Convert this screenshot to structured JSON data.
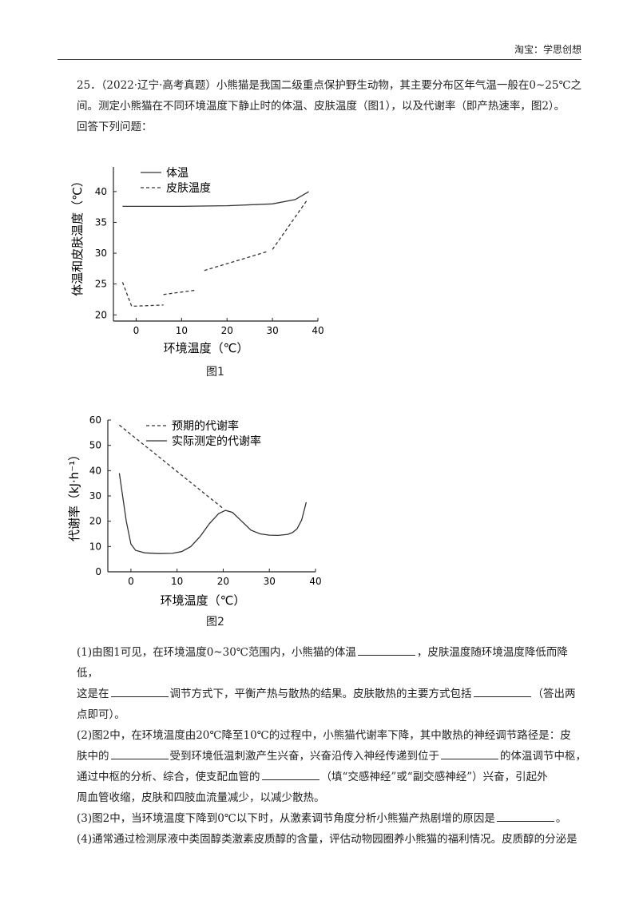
{
  "header": {
    "text": "淘宝：学思创想"
  },
  "question": {
    "lines": [
      "25．（2022·辽宁·高考真题）小熊猫是我国二级重点保护野生动物，其主要分布区年气温一般在0~25℃之",
      "间。测定小熊猫在不同环境温度下静止时的体温、皮肤温度（图1），以及代谢率（即产热速率，图2）。",
      "回答下列问题："
    ]
  },
  "figure1": {
    "caption": "图1",
    "chart_data": {
      "type": "line",
      "xlabel": "环境温度（℃）",
      "ylabel": "体温和皮肤温度（℃）",
      "xlim": [
        -5,
        40
      ],
      "ylim": [
        19,
        44
      ],
      "xticks": [
        "0",
        "10",
        "20",
        "30",
        "40"
      ],
      "yticks": [
        "20",
        "25",
        "30",
        "35",
        "40"
      ],
      "legend": [
        "体温",
        "皮肤温度"
      ],
      "series": [
        {
          "name": "体温",
          "style": "solid",
          "x": [
            -3,
            10,
            20,
            30,
            35,
            38
          ],
          "y": [
            37.6,
            37.6,
            37.7,
            38,
            38.7,
            40
          ]
        },
        {
          "name": "皮肤温度",
          "style": "dashed",
          "segments": [
            {
              "x": [
                -3,
                -1,
                6
              ],
              "y": [
                25.3,
                21.4,
                21.6
              ]
            },
            {
              "x": [
                6,
                13
              ],
              "y": [
                23.3,
                24
              ]
            },
            {
              "x": [
                15,
                29
              ],
              "y": [
                27.2,
                30.3
              ]
            },
            {
              "x": [
                30,
                37.5
              ],
              "y": [
                30.6,
                38.5
              ]
            }
          ]
        }
      ]
    }
  },
  "figure2": {
    "caption": "图2",
    "chart_data": {
      "type": "line",
      "xlabel": "环境温度（℃）",
      "ylabel": "代谢率（kJ·h⁻¹）",
      "xlim": [
        -5,
        40
      ],
      "ylim": [
        0,
        60
      ],
      "xticks": [
        "0",
        "10",
        "20",
        "30",
        "40"
      ],
      "yticks": [
        "0",
        "10",
        "20",
        "30",
        "40",
        "50",
        "60"
      ],
      "legend": [
        "预期的代谢率",
        "实际测定的代谢率"
      ],
      "series": [
        {
          "name": "预期的代谢率",
          "style": "dashed",
          "x": [
            -2.5,
            20
          ],
          "y": [
            58,
            25
          ]
        },
        {
          "name": "实际测定的代谢率",
          "style": "solid",
          "x": [
            -2.5,
            -1,
            0,
            1,
            3,
            6,
            9,
            11,
            13,
            15,
            17,
            19,
            20.5,
            22,
            24,
            26,
            28,
            30,
            32,
            34,
            35,
            36,
            37,
            38
          ],
          "y": [
            39,
            20,
            11,
            8.5,
            7.5,
            7.2,
            7.3,
            8,
            10,
            14,
            19,
            23,
            24.3,
            23.5,
            20,
            16.5,
            15,
            14.5,
            14.4,
            14.8,
            15.5,
            17,
            20.5,
            27.5
          ]
        }
      ]
    }
  },
  "subquestions": {
    "q1_a": "(1)由图1可见，在环境温度0~30℃范围内，小熊猫的体温",
    "q1_b": "，皮肤温度随环境温度降低而降低，",
    "q1_c": "这是在",
    "q1_d": "调节方式下，平衡产热与散热的结果。皮肤散热的主要方式包括",
    "q1_e": "（答出两",
    "q1_f": "点即可）。",
    "q2_a": "(2)图2中，在环境温度由20℃降至10℃的过程中，小熊猫代谢率下降，其中散热的神经调节路径是：皮",
    "q2_b": "肤中的",
    "q2_c": "受到环境低温刺激产生兴奋，兴奋沿传入神经传递到位于",
    "q2_d": "的体温调节中枢，",
    "q2_e": "通过中枢的分析、综合，使支配血管的",
    "q2_f": "（填“交感神经”或“副交感神经”）兴奋，引起外",
    "q2_g": "周血管收缩，皮肤和四肢血流量减少，以减少散热。",
    "q3_a": "(3)图2中，当环境温度下降到0℃以下时，从激素调节角度分析小熊猫产热剧增的原因是",
    "q3_b": "。",
    "q4_a": "(4)通常通过检测尿液中类固醇类激素皮质醇的含量，评估动物园圈养小熊猫的福利情况。皮质醇的分泌是"
  }
}
